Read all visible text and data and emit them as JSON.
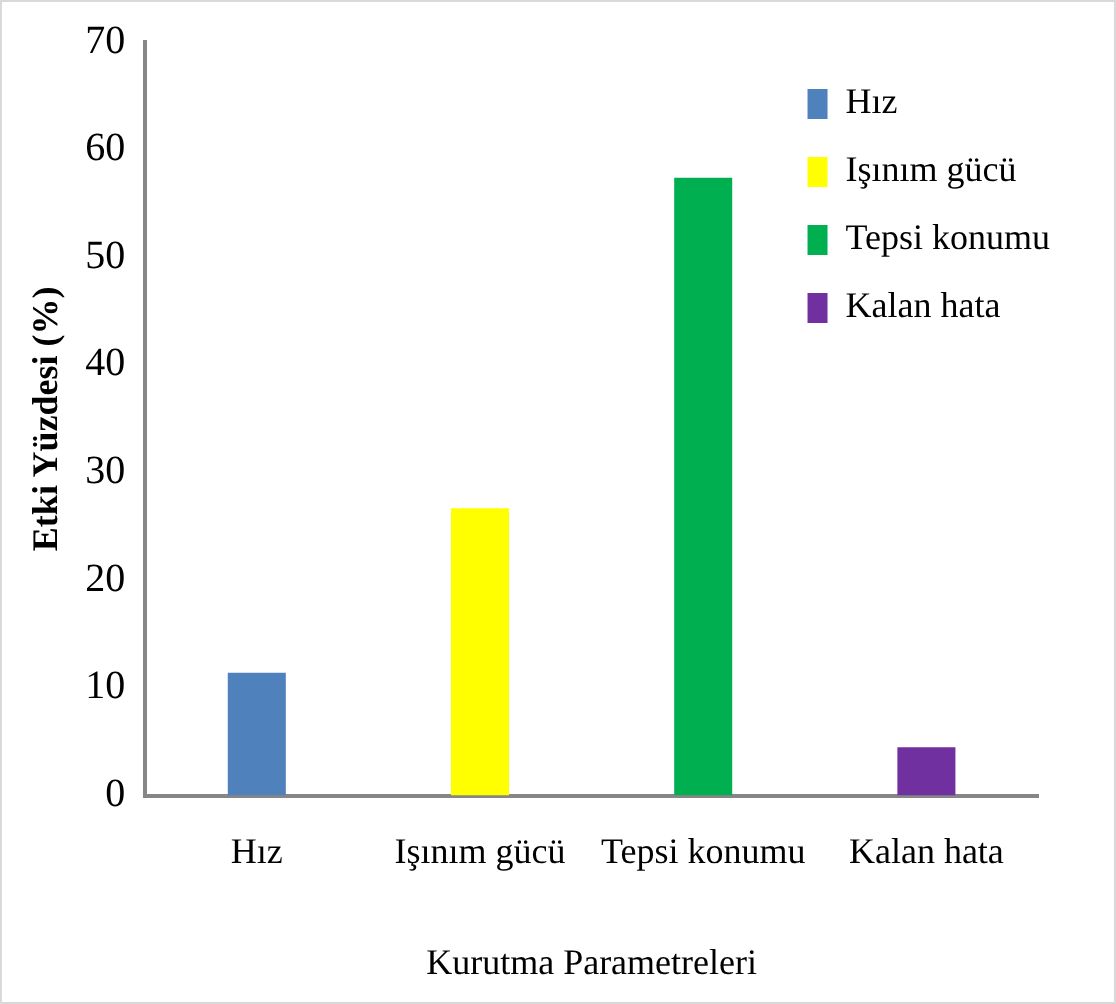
{
  "chart_data": {
    "type": "bar",
    "xlabel": "Kurutma Parametreleri",
    "ylabel": "Etki Yüzdesi (%)",
    "categories": [
      "Hız",
      "Işınım gücü",
      "Tepsi konumu",
      "Kalan hata"
    ],
    "series": [
      {
        "name": "Hız",
        "color": "#4f81bd",
        "values": [
          11.4,
          null,
          null,
          null
        ]
      },
      {
        "name": "Işınım gücü",
        "color": "#ffff00",
        "values": [
          null,
          26.7,
          null,
          null
        ]
      },
      {
        "name": "Tepsi konumu",
        "color": "#00b050",
        "values": [
          null,
          null,
          57.4,
          null
        ]
      },
      {
        "name": "Kalan hata",
        "color": "#7030a0",
        "values": [
          null,
          null,
          null,
          4.5
        ]
      }
    ],
    "stacked": true,
    "ylim": [
      0,
      70
    ],
    "yticks": [
      0,
      10,
      20,
      30,
      40,
      50,
      60,
      70
    ],
    "grid": false,
    "legend": "top right"
  }
}
